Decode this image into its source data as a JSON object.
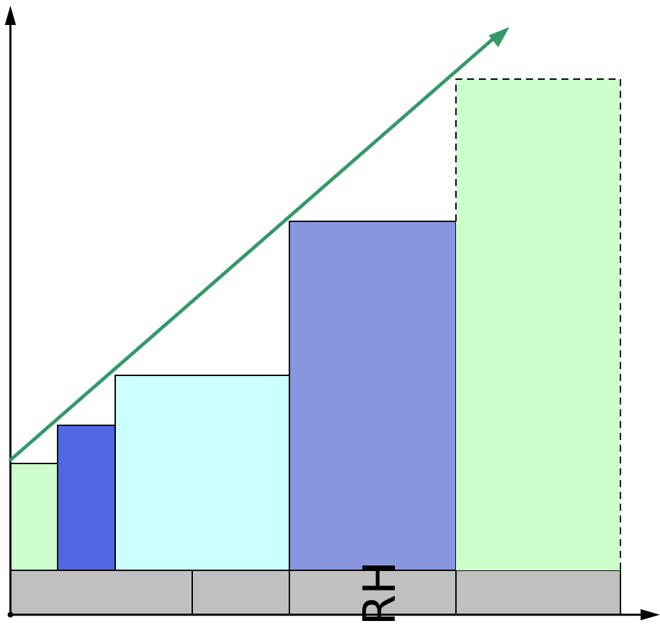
{
  "diagram": {
    "label": "RH",
    "colors": {
      "bar_light_green": "#ccffcc",
      "bar_royal_blue": "#5068e4",
      "bar_light_cyan": "#ccffff",
      "bar_periwinkle": "#8896e0",
      "base_gray": "#c0c0c0",
      "trend_arrow": "#339966",
      "axes": "#000000"
    },
    "elements": [
      "y-axis-arrow",
      "x-axis-arrow",
      "gray-base-row",
      "bar-1",
      "bar-2",
      "bar-3",
      "bar-4",
      "projected-bar-dashed",
      "green-trend-arrow"
    ]
  }
}
